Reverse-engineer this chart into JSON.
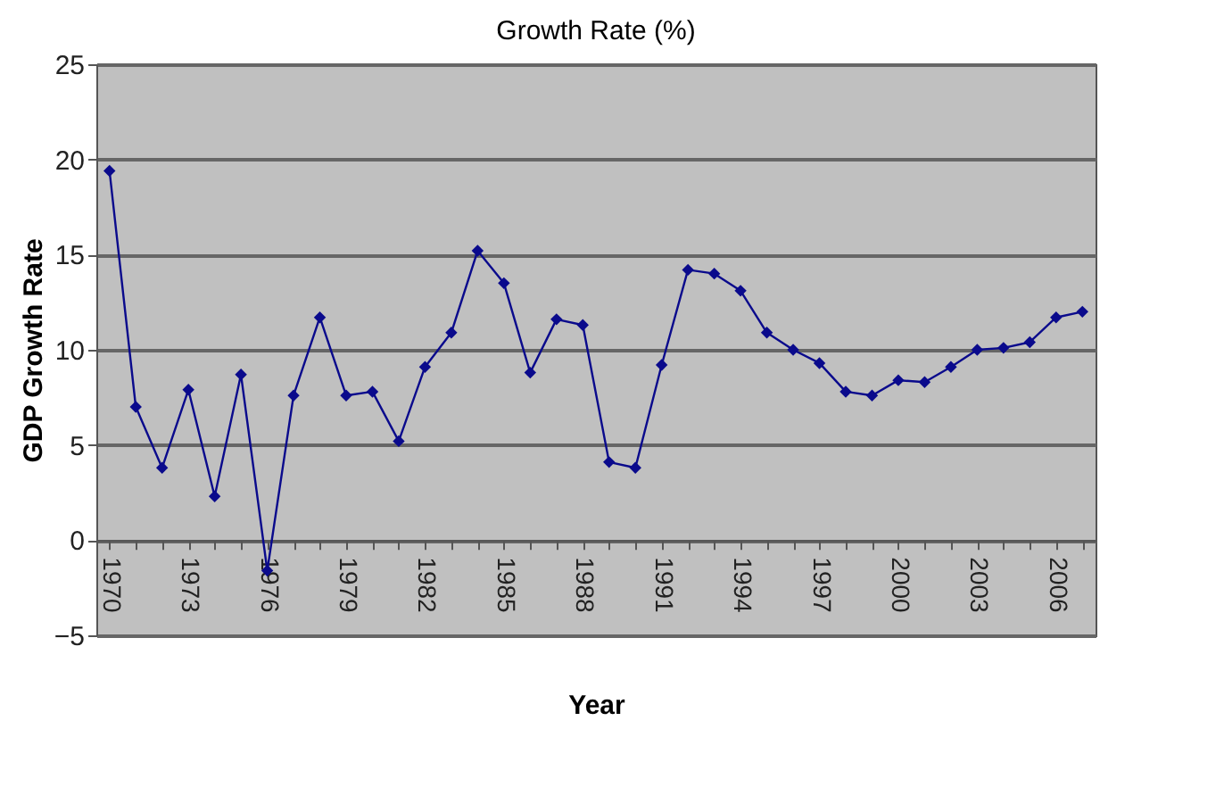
{
  "chart_data": {
    "type": "line",
    "title": "Growth Rate (%)",
    "xlabel": "Year",
    "ylabel": "GDP Growth Rate",
    "categories": [
      "1970",
      null,
      null,
      "1973",
      null,
      null,
      "1976",
      null,
      null,
      "1979",
      null,
      null,
      "1982",
      null,
      null,
      "1985",
      null,
      null,
      "1988",
      null,
      null,
      "1991",
      null,
      null,
      "1994",
      null,
      null,
      "1997",
      null,
      null,
      "2000",
      null,
      null,
      "2003",
      null,
      null,
      "2006",
      null
    ],
    "series": [
      {
        "color": "#0a0a8c",
        "values": [
          19.4,
          7.0,
          3.8,
          7.9,
          2.3,
          8.7,
          -1.6,
          7.6,
          11.7,
          7.6,
          7.8,
          5.2,
          9.1,
          10.9,
          15.2,
          13.5,
          8.8,
          11.6,
          11.3,
          4.1,
          3.8,
          9.2,
          14.2,
          14.0,
          13.1,
          10.9,
          10.0,
          9.3,
          7.8,
          7.6,
          8.4,
          8.3,
          9.1,
          10.0,
          10.1,
          10.4,
          11.7,
          12.0
        ]
      }
    ],
    "ylim": [
      -5,
      25
    ],
    "yticks": [
      -5,
      0,
      5,
      10,
      15,
      20,
      25
    ],
    "grid": "y",
    "marker": "diamond",
    "line_style": "solid"
  }
}
